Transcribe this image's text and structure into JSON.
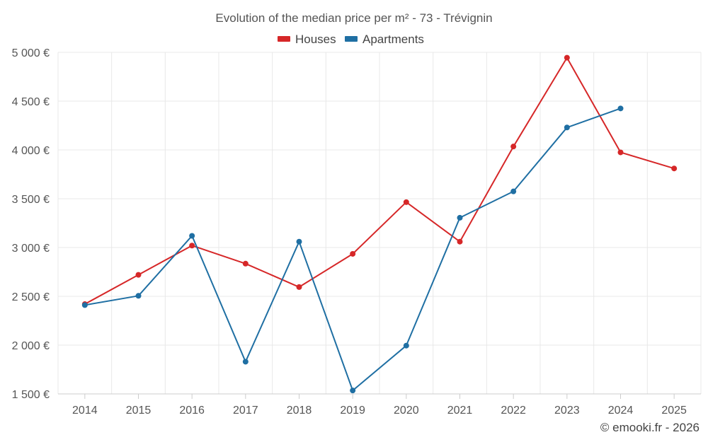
{
  "chart_data": {
    "type": "line",
    "title": "Evolution of the median price per m² - 73 - Trévignin",
    "categories": [
      "2014",
      "2015",
      "2016",
      "2017",
      "2018",
      "2019",
      "2020",
      "2021",
      "2022",
      "2023",
      "2024",
      "2025"
    ],
    "series": [
      {
        "name": "Houses",
        "color": "#d62728",
        "values": [
          2420,
          2720,
          3020,
          2835,
          2595,
          2935,
          3465,
          3060,
          4035,
          4945,
          3975,
          3810
        ]
      },
      {
        "name": "Apartments",
        "color": "#1f6fa3",
        "values": [
          2410,
          2505,
          3120,
          1830,
          3060,
          1535,
          1995,
          3305,
          3575,
          4230,
          4425,
          null
        ]
      }
    ],
    "ylim": [
      1500,
      5000
    ],
    "yticks": [
      1500,
      2000,
      2500,
      3000,
      3500,
      4000,
      4500,
      5000
    ],
    "ytick_labels": [
      "1 500 €",
      "2 000 €",
      "2 500 €",
      "3 000 €",
      "3 500 €",
      "4 000 €",
      "4 500 €",
      "5 000 €"
    ],
    "legend_position": "top-center",
    "xlabel": "",
    "ylabel": ""
  },
  "credit": "© emooki.fr - 2026"
}
